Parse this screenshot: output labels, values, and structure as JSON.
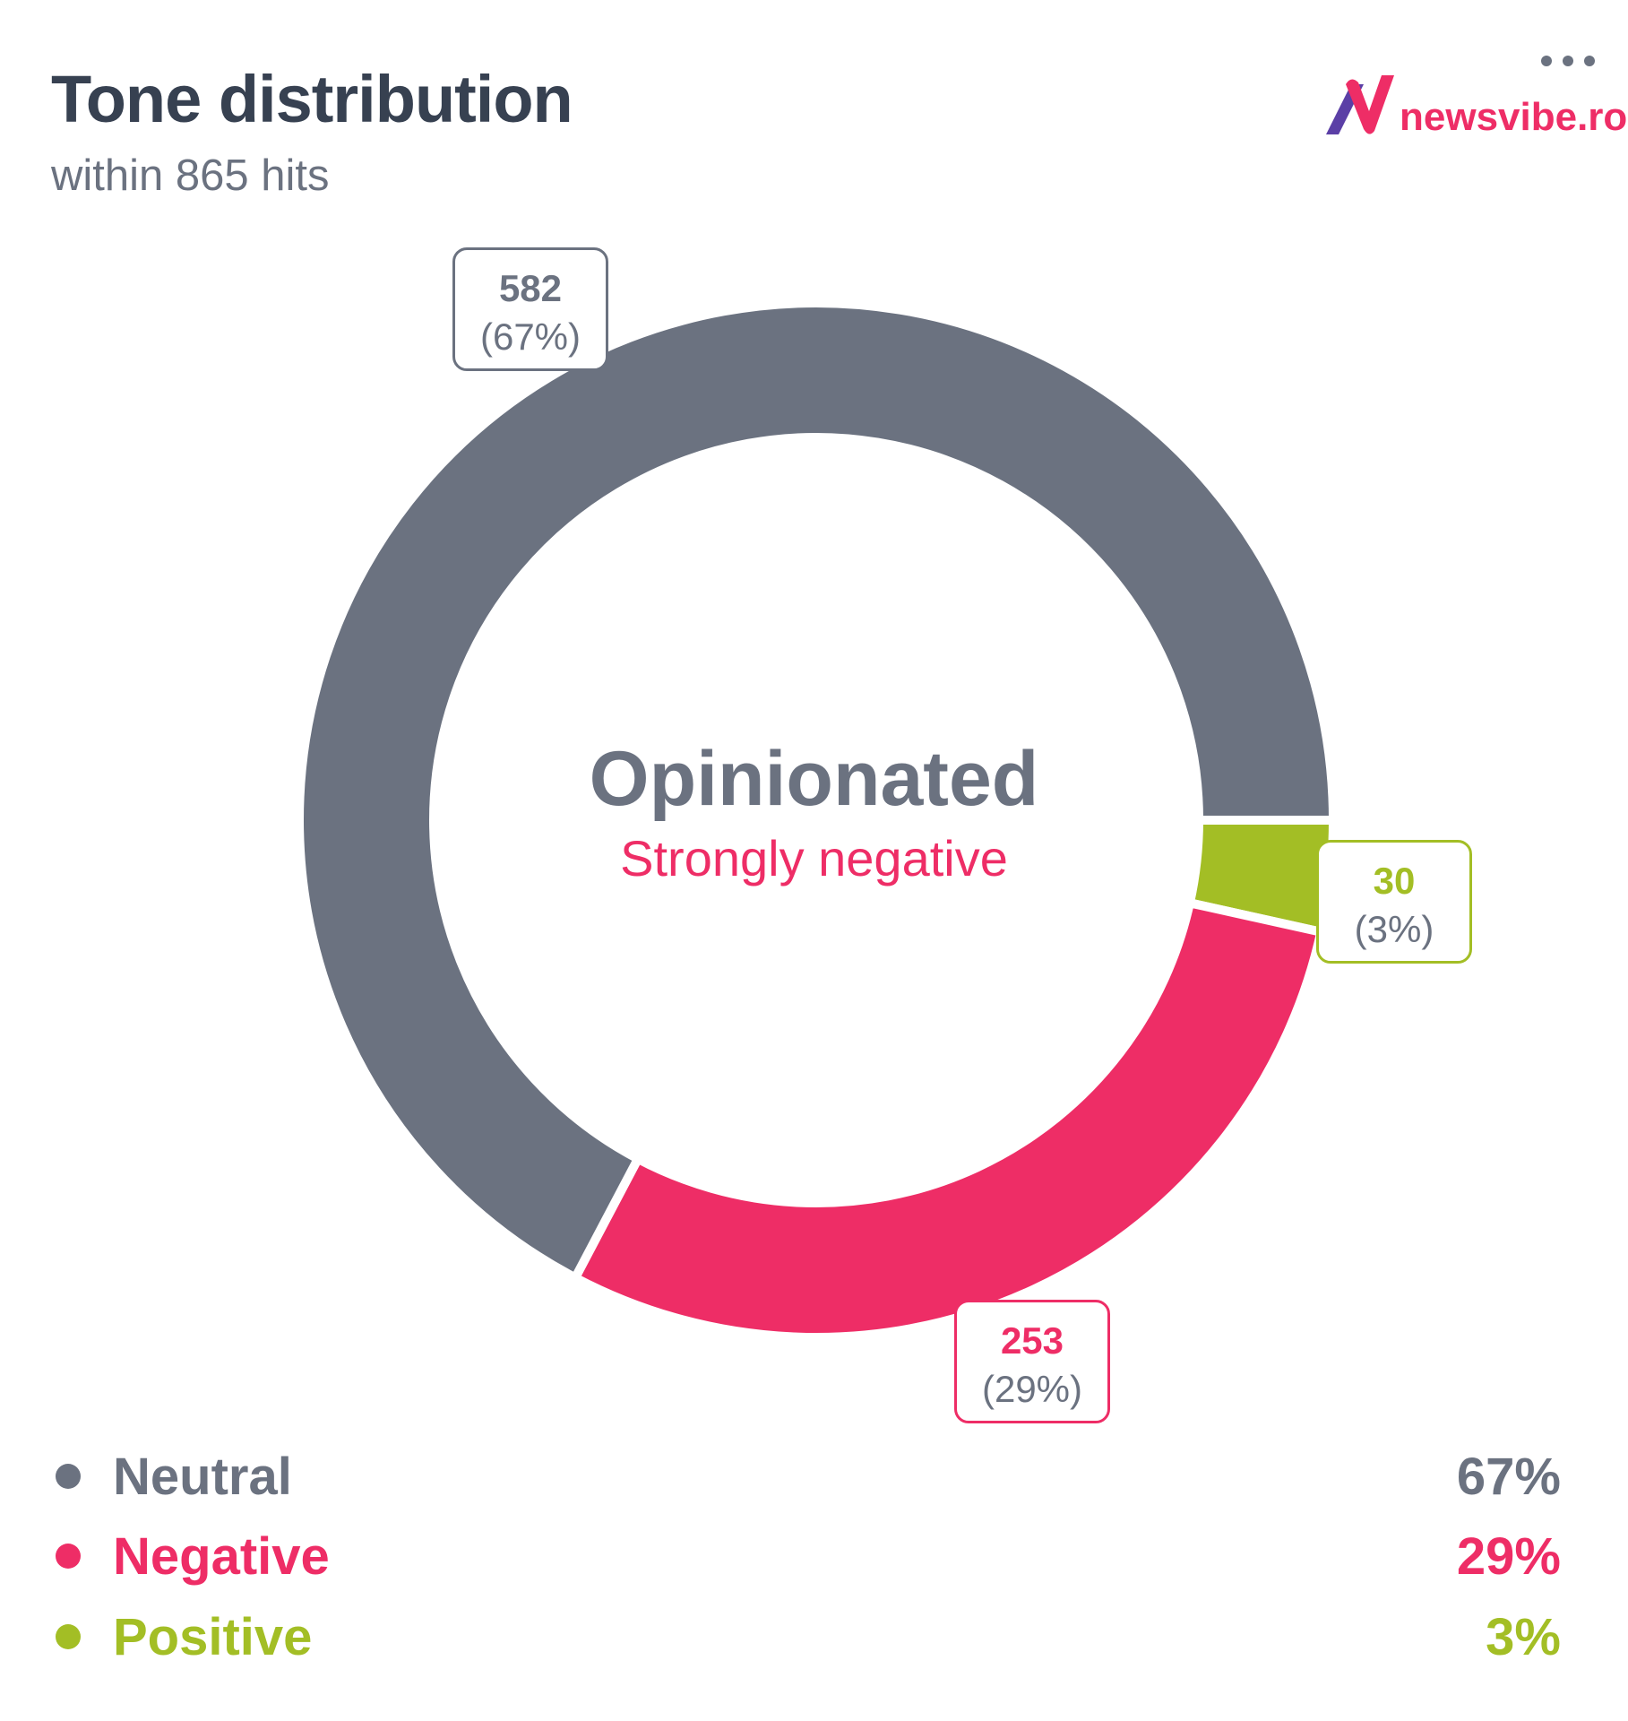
{
  "header": {
    "title": "Tone distribution",
    "subtitle": "within 865 hits",
    "menu_icon": "more-horizontal-icon"
  },
  "logo": {
    "text": "newsvibe.ro"
  },
  "center": {
    "main": "Opinionated",
    "sub": "Strongly negative"
  },
  "chart_data": {
    "type": "pie",
    "variant": "donut",
    "total": 865,
    "start": "3 o'clock, clockwise",
    "slices": [
      {
        "name": "Positive",
        "value": 30,
        "percent": "3%",
        "label_value": "30",
        "label_percent": "(3%)",
        "color": "#a3be25"
      },
      {
        "name": "Negative",
        "value": 253,
        "percent": "29%",
        "label_value": "253",
        "label_percent": "(29%)",
        "color": "#ee2d66"
      },
      {
        "name": "Neutral",
        "value": 582,
        "percent": "67%",
        "label_value": "582",
        "label_percent": "(67%)",
        "color": "#6b7280"
      }
    ],
    "legend": [
      {
        "name": "Neutral",
        "percent": "67%",
        "color": "#6b7280"
      },
      {
        "name": "Negative",
        "percent": "29%",
        "color": "#ee2d66"
      },
      {
        "name": "Positive",
        "percent": "3%",
        "color": "#a3be25"
      }
    ],
    "legend_position": "bottom"
  }
}
